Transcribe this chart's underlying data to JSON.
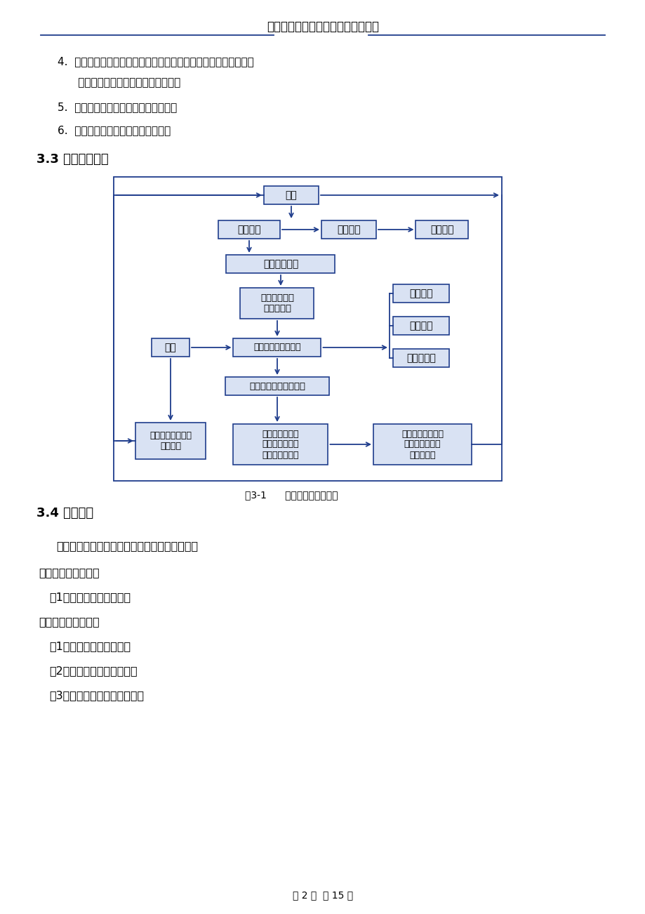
{
  "title_company": "张家港市兴华建筑安装工程有限公司",
  "bg_color": "#ffffff",
  "box_border_color": "#1f3d8c",
  "box_fill_color": "#d9e2f3",
  "arrow_color": "#1f3d8c",
  "items_top": [
    [
      "4.",
      "  明确仪器埋设要点和埋设标准，明确所采用的监测仪器的类型、"
    ],
    [
      "",
      "    型号或量程，制定观测作业指导书；"
    ],
    [
      "5.",
      "  根据规范要求，明确施工控制标准；"
    ],
    [
      "6.",
      "  明确监测人员与施工人员的责任。"
    ]
  ],
  "section_33": "3.3 监测工作流程",
  "section_34": "3.4 监测项目",
  "fig_caption": "图3-1      施工监测管理流程图",
  "section_34_lines": [
    {
      "indent": 80,
      "text": "根据招标文件要求，施工监测项目主要内容为："
    },
    {
      "indent": 55,
      "text": "一、支护结构的监测"
    },
    {
      "indent": 70,
      "text": "（1）坡顶水平位移监测；"
    },
    {
      "indent": 55,
      "text": "二、周围环境的监测"
    },
    {
      "indent": 70,
      "text": "（1）建筑物的沉降观测；"
    },
    {
      "indent": 70,
      "text": "（2）周边地表的沉降监测；"
    },
    {
      "indent": 70,
      "text": "（3）土体深层位移（测斜）。"
    }
  ],
  "footer": "第 2 页  共 15 页"
}
